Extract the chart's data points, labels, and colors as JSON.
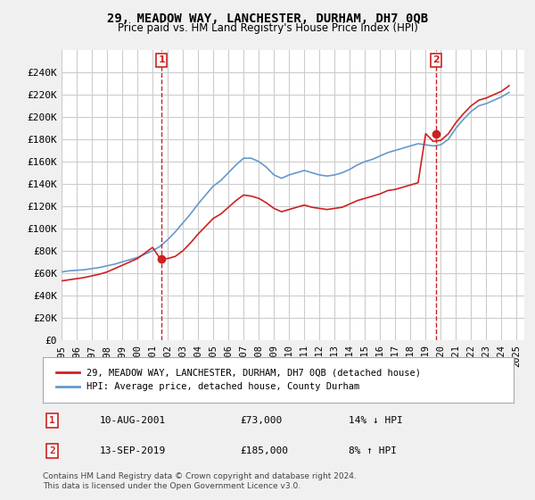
{
  "title": "29, MEADOW WAY, LANCHESTER, DURHAM, DH7 0QB",
  "subtitle": "Price paid vs. HM Land Registry's House Price Index (HPI)",
  "ylabel_ticks": [
    "£0",
    "£20K",
    "£40K",
    "£60K",
    "£80K",
    "£100K",
    "£120K",
    "£140K",
    "£160K",
    "£180K",
    "£200K",
    "£220K",
    "£240K"
  ],
  "ytick_values": [
    0,
    20000,
    40000,
    60000,
    80000,
    100000,
    120000,
    140000,
    160000,
    180000,
    200000,
    220000,
    240000
  ],
  "ylim": [
    0,
    260000
  ],
  "xlim_start": 1995.0,
  "xlim_end": 2025.5,
  "background_color": "#f0f0f0",
  "plot_bg_color": "#ffffff",
  "grid_color": "#cccccc",
  "hpi_color": "#6699cc",
  "price_color": "#cc2222",
  "annotation_color": "#cc2222",
  "legend_label_price": "29, MEADOW WAY, LANCHESTER, DURHAM, DH7 0QB (detached house)",
  "legend_label_hpi": "HPI: Average price, detached house, County Durham",
  "transaction1_label": "1",
  "transaction1_date": "10-AUG-2001",
  "transaction1_price": "£73,000",
  "transaction1_hpi": "14% ↓ HPI",
  "transaction1_year": 2001.6,
  "transaction1_value": 73000,
  "transaction2_label": "2",
  "transaction2_date": "13-SEP-2019",
  "transaction2_price": "£185,000",
  "transaction2_hpi": "8% ↑ HPI",
  "transaction2_year": 2019.7,
  "transaction2_value": 185000,
  "footer_text": "Contains HM Land Registry data © Crown copyright and database right 2024.\nThis data is licensed under the Open Government Licence v3.0.",
  "xtick_years": [
    1995,
    1996,
    1997,
    1998,
    1999,
    2000,
    2001,
    2002,
    2003,
    2004,
    2005,
    2006,
    2007,
    2008,
    2009,
    2010,
    2011,
    2012,
    2013,
    2014,
    2015,
    2016,
    2017,
    2018,
    2019,
    2020,
    2021,
    2022,
    2023,
    2024,
    2025
  ],
  "hpi_years": [
    1995.0,
    1995.5,
    1996.0,
    1996.5,
    1997.0,
    1997.5,
    1998.0,
    1998.5,
    1999.0,
    1999.5,
    2000.0,
    2000.5,
    2001.0,
    2001.5,
    2002.0,
    2002.5,
    2003.0,
    2003.5,
    2004.0,
    2004.5,
    2005.0,
    2005.5,
    2006.0,
    2006.5,
    2007.0,
    2007.5,
    2008.0,
    2008.5,
    2009.0,
    2009.5,
    2010.0,
    2010.5,
    2011.0,
    2011.5,
    2012.0,
    2012.5,
    2013.0,
    2013.5,
    2014.0,
    2014.5,
    2015.0,
    2015.5,
    2016.0,
    2016.5,
    2017.0,
    2017.5,
    2018.0,
    2018.5,
    2019.0,
    2019.5,
    2020.0,
    2020.5,
    2021.0,
    2021.5,
    2022.0,
    2022.5,
    2023.0,
    2023.5,
    2024.0,
    2024.5
  ],
  "hpi_values": [
    61000,
    62000,
    62500,
    63000,
    64000,
    65000,
    66500,
    68000,
    70000,
    72000,
    74000,
    77000,
    80000,
    84000,
    90000,
    97000,
    105000,
    113000,
    122000,
    130000,
    138000,
    143000,
    150000,
    157000,
    163000,
    163000,
    160000,
    155000,
    148000,
    145000,
    148000,
    150000,
    152000,
    150000,
    148000,
    147000,
    148000,
    150000,
    153000,
    157000,
    160000,
    162000,
    165000,
    168000,
    170000,
    172000,
    174000,
    176000,
    175000,
    174000,
    175000,
    180000,
    190000,
    198000,
    205000,
    210000,
    212000,
    215000,
    218000,
    222000
  ],
  "price_years": [
    1995.0,
    1995.5,
    1996.0,
    1996.5,
    1997.0,
    1997.5,
    1998.0,
    1998.5,
    1999.0,
    1999.5,
    2000.0,
    2000.5,
    2001.0,
    2001.5,
    2002.0,
    2002.5,
    2003.0,
    2003.5,
    2004.0,
    2004.5,
    2005.0,
    2005.5,
    2006.0,
    2006.5,
    2007.0,
    2007.5,
    2008.0,
    2008.5,
    2009.0,
    2009.5,
    2010.0,
    2010.5,
    2011.0,
    2011.5,
    2012.0,
    2012.5,
    2013.0,
    2013.5,
    2014.0,
    2014.5,
    2015.0,
    2015.5,
    2016.0,
    2016.5,
    2017.0,
    2017.5,
    2018.0,
    2018.5,
    2019.0,
    2019.5,
    2020.0,
    2020.5,
    2021.0,
    2021.5,
    2022.0,
    2022.5,
    2023.0,
    2023.5,
    2024.0,
    2024.5
  ],
  "price_indexed_values": [
    53000,
    54000,
    55000,
    56000,
    57500,
    59000,
    61000,
    64000,
    67000,
    70000,
    73000,
    78000,
    83000,
    73000,
    73000,
    75000,
    80000,
    87000,
    95000,
    102000,
    109000,
    113000,
    119000,
    125000,
    130000,
    129000,
    127000,
    123000,
    118000,
    115000,
    117000,
    119000,
    121000,
    119000,
    118000,
    117000,
    118000,
    119000,
    122000,
    125000,
    127000,
    129000,
    131000,
    134000,
    135000,
    137000,
    139000,
    141000,
    185000,
    178000,
    179000,
    185000,
    195000,
    203000,
    210000,
    215000,
    217000,
    220000,
    223000,
    228000
  ]
}
